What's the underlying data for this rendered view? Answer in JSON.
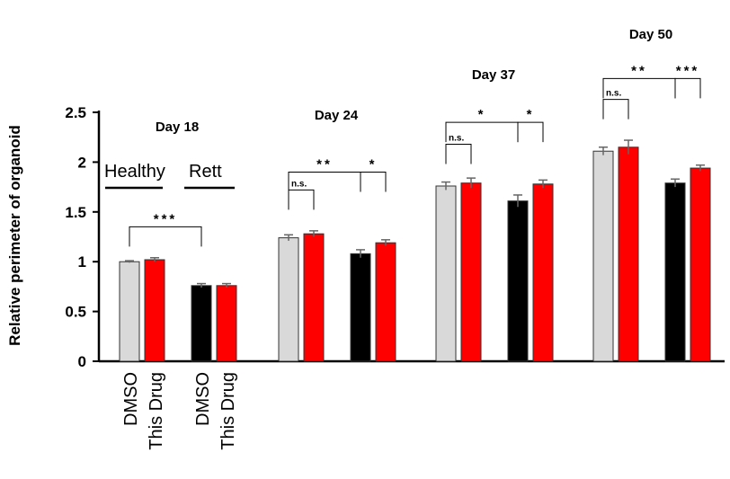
{
  "chart_data": {
    "type": "bar",
    "ylabel": "Relative perimeter of organoid",
    "ylim": [
      0,
      2.5
    ],
    "yticks": [
      0,
      0.5,
      1,
      1.5,
      2,
      2.5
    ],
    "ytick_labels": [
      "0",
      "0.5",
      "1",
      "1.5",
      "2",
      "2.5"
    ],
    "group_labels": [
      "Healthy",
      "Rett"
    ],
    "x_labels": [
      "DMSO",
      "This Drug",
      "DMSO",
      "This Drug"
    ],
    "colors": {
      "healthy_dmso": "#d9d9d9",
      "drug": "#ff0000",
      "rett_dmso": "#000000"
    },
    "days": [
      {
        "label": "Day 18",
        "values": [
          1.0,
          1.02,
          0.76,
          0.76
        ],
        "errors": [
          0.01,
          0.02,
          0.02,
          0.02
        ],
        "significance": [
          {
            "label": "***",
            "from": 0,
            "to": 2,
            "level": 1.35
          }
        ]
      },
      {
        "label": "Day 24",
        "values": [
          1.24,
          1.28,
          1.08,
          1.19
        ],
        "errors": [
          0.03,
          0.03,
          0.04,
          0.03
        ],
        "significance": [
          {
            "label": "n.s.",
            "from": 0,
            "to": 1,
            "level": 1.72
          },
          {
            "label": "**",
            "from": 0,
            "to": 2,
            "level": 1.9
          },
          {
            "label": "*",
            "from": 2,
            "to": 3,
            "level": 1.9
          }
        ]
      },
      {
        "label": "Day 37",
        "values": [
          1.76,
          1.79,
          1.61,
          1.78
        ],
        "errors": [
          0.04,
          0.05,
          0.06,
          0.04
        ],
        "significance": [
          {
            "label": "n.s.",
            "from": 0,
            "to": 1,
            "level": 2.18
          },
          {
            "label": "*",
            "from": 0,
            "to": 2,
            "level": 2.4
          },
          {
            "label": "*",
            "from": 2,
            "to": 3,
            "level": 2.4
          }
        ]
      },
      {
        "label": "Day 50",
        "values": [
          2.11,
          2.15,
          1.79,
          1.94
        ],
        "errors": [
          0.04,
          0.07,
          0.04,
          0.03
        ],
        "significance": [
          {
            "label": "n.s.",
            "from": 0,
            "to": 1,
            "level": 2.63
          },
          {
            "label": "**",
            "from": 0,
            "to": 2,
            "level": 2.84
          },
          {
            "label": "***",
            "from": 2,
            "to": 3,
            "level": 2.84
          }
        ]
      }
    ]
  }
}
